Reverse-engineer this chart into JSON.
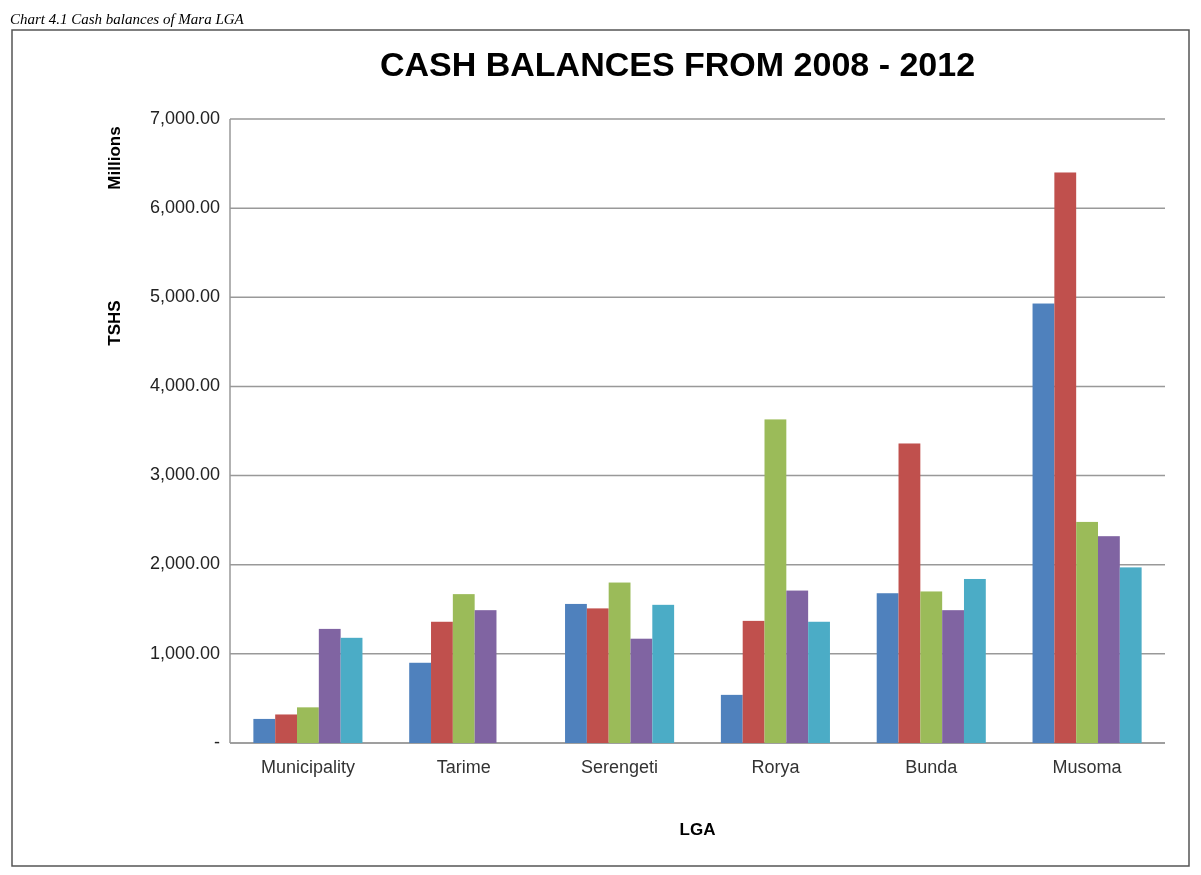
{
  "chart_data": {
    "type": "bar",
    "title": "CASH BALANCES  FROM 2008 - 2012",
    "xlabel": "LGA",
    "ylabel": "TSHS",
    "annotations": [
      "Chart 4.1 Cash balances of Mara LGA",
      "Millions"
    ],
    "categories": [
      "Municipality",
      "Tarime",
      "Serengeti",
      "Rorya",
      "Bunda",
      "Musoma"
    ],
    "series": [
      {
        "color": "#4f81bd",
        "values": [
          270,
          900,
          1560,
          540,
          1680,
          4930
        ]
      },
      {
        "color": "#c0504d",
        "values": [
          320,
          1360,
          1510,
          1370,
          3360,
          6400
        ]
      },
      {
        "color": "#9bbb59",
        "values": [
          400,
          1670,
          1800,
          3630,
          1700,
          2480
        ]
      },
      {
        "color": "#8064a2",
        "values": [
          1280,
          1490,
          1170,
          1710,
          1490,
          2320
        ]
      },
      {
        "color": "#4bacc6",
        "values": [
          1180,
          null,
          1550,
          1360,
          1840,
          1970
        ]
      }
    ],
    "ylim": [
      0,
      7000
    ],
    "yticks": [
      {
        "value": 0,
        "label": "-"
      },
      {
        "value": 1000,
        "label": "1,000.00"
      },
      {
        "value": 2000,
        "label": "2,000.00"
      },
      {
        "value": 3000,
        "label": "3,000.00"
      },
      {
        "value": 4000,
        "label": "4,000.00"
      },
      {
        "value": 5000,
        "label": "5,000.00"
      },
      {
        "value": 6000,
        "label": "6,000.00"
      },
      {
        "value": 7000,
        "label": "7,000.00"
      }
    ],
    "grid": "y"
  }
}
